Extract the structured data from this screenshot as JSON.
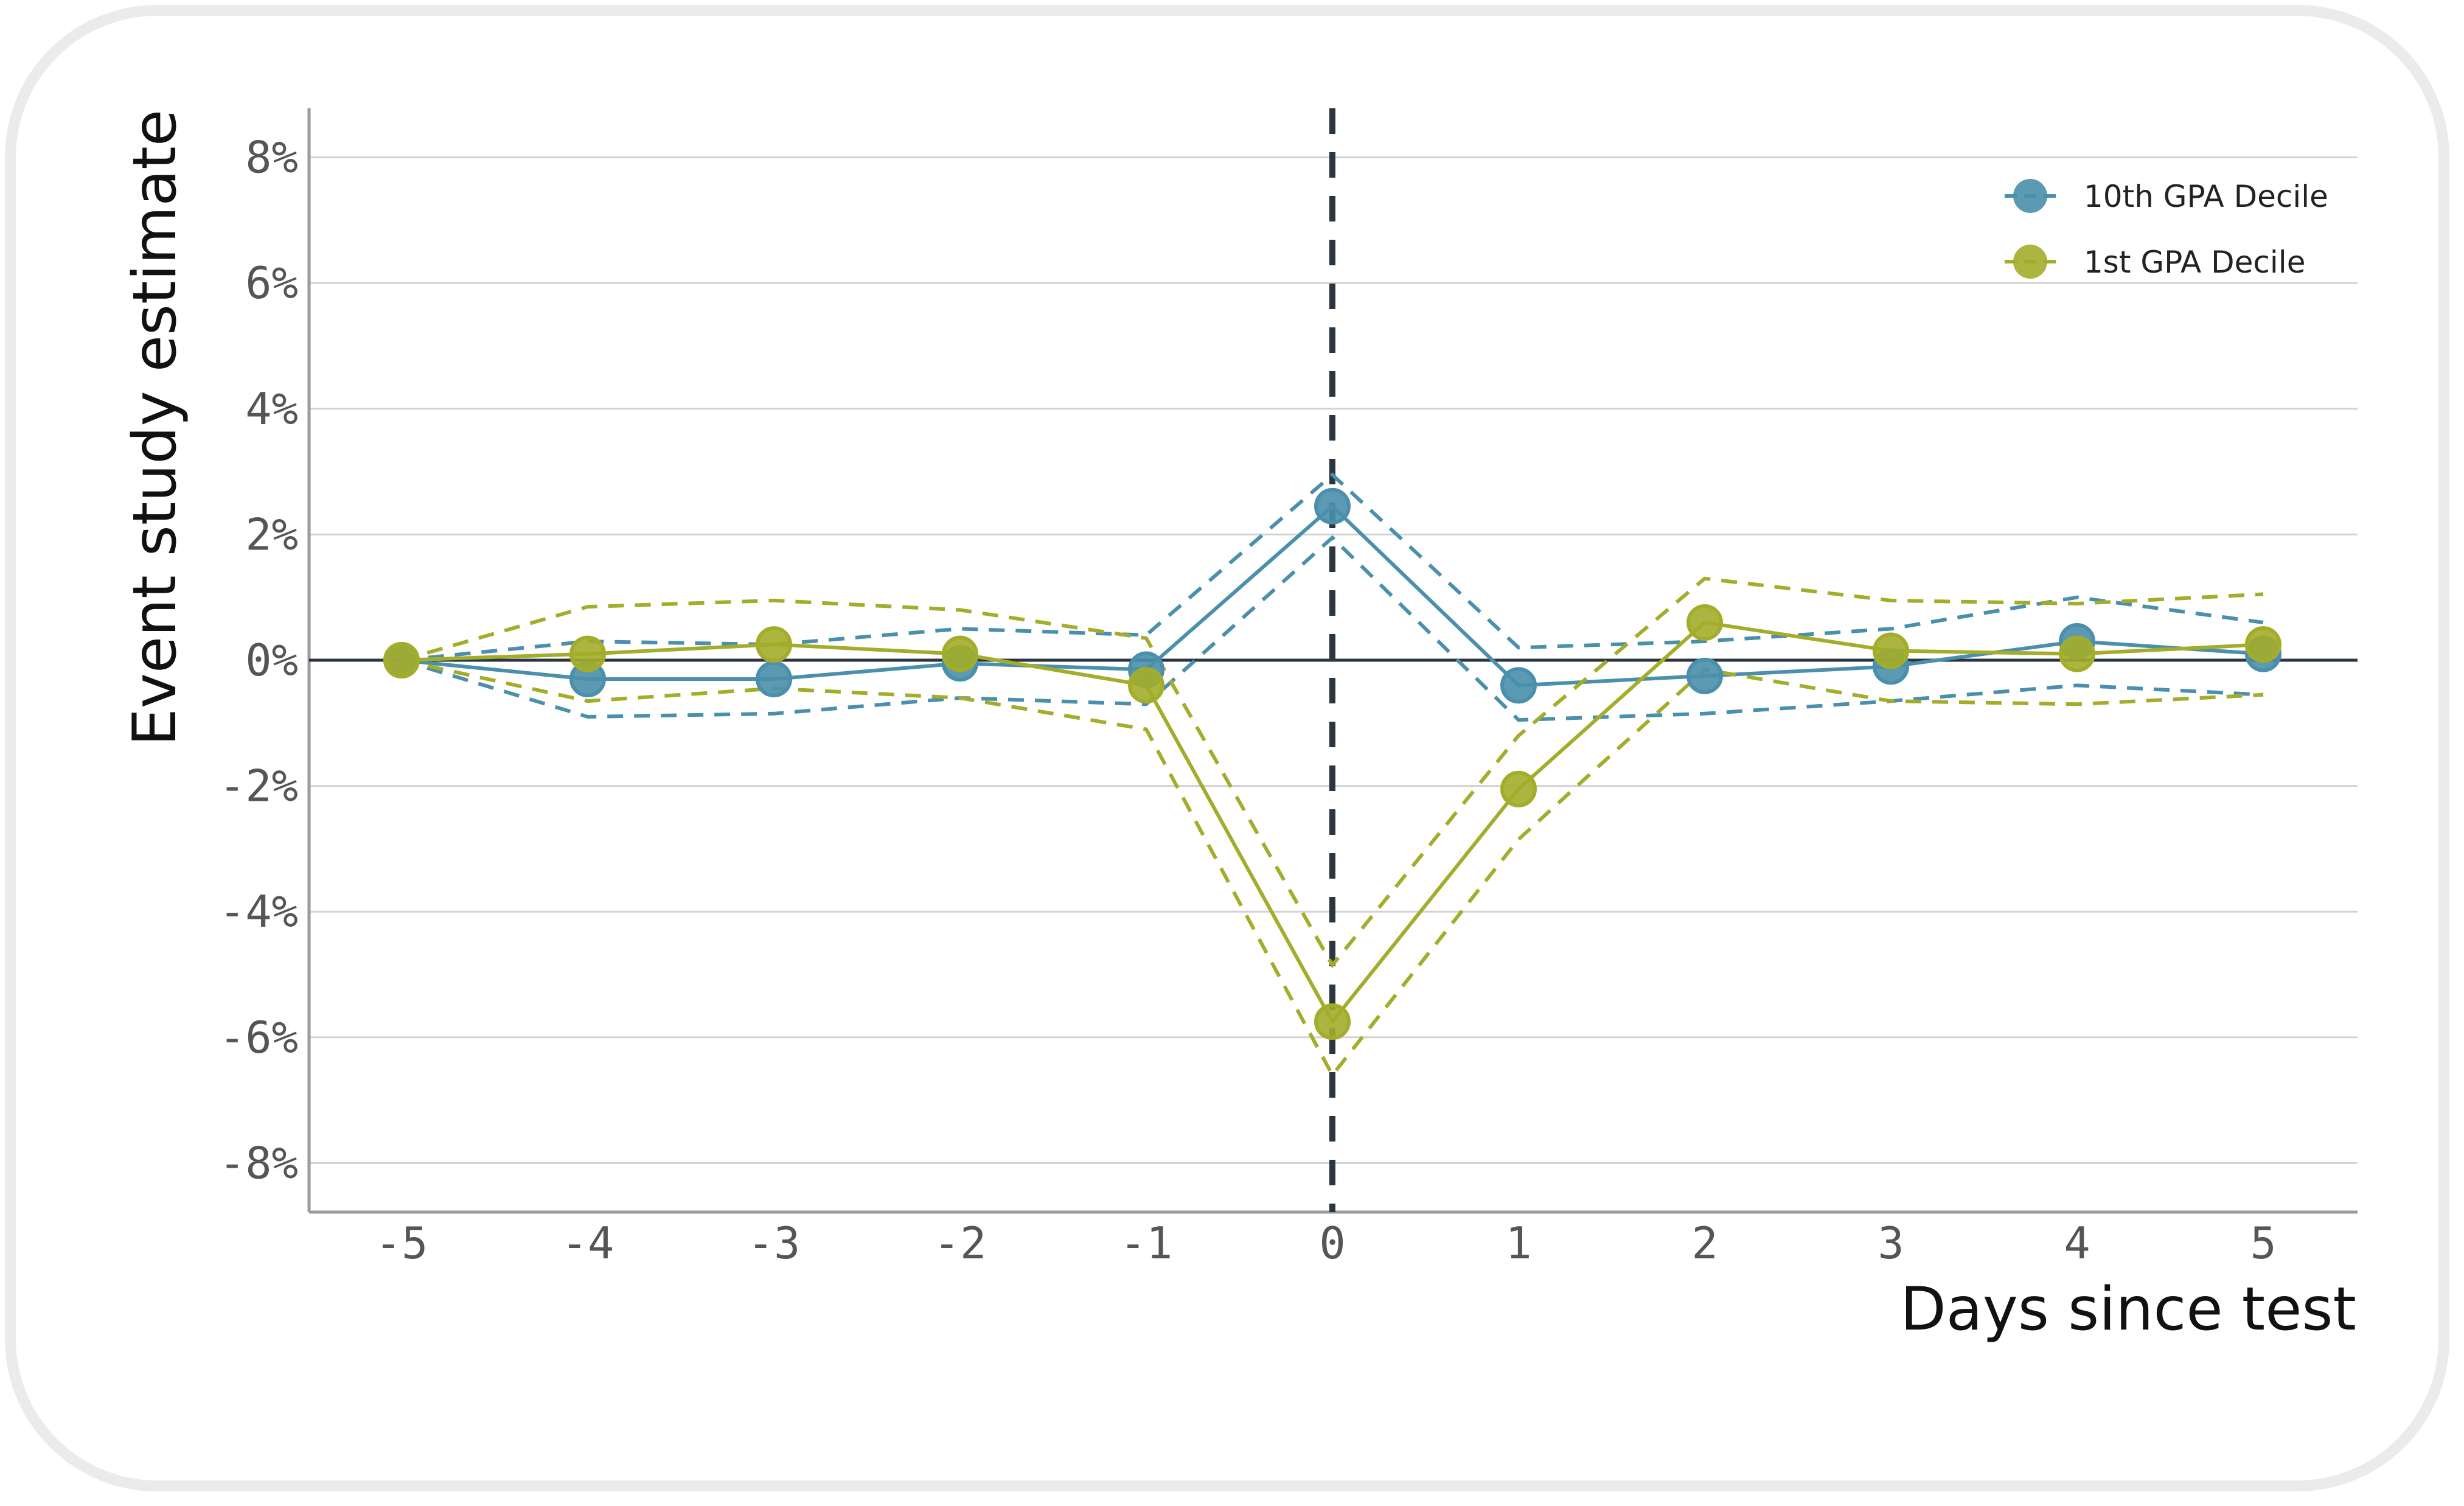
{
  "chart_data": {
    "type": "line",
    "title": "",
    "xlabel": "Days since test",
    "ylabel": "Event study estimate",
    "x": [
      -5,
      -4,
      -3,
      -2,
      -1,
      0,
      1,
      2,
      3,
      4,
      5
    ],
    "x_tick_labels": [
      "-5",
      "-4",
      "-3",
      "-2",
      "-1",
      "0",
      "1",
      "2",
      "3",
      "4",
      "5"
    ],
    "y_ticks": [
      -8,
      -6,
      -4,
      -2,
      0,
      2,
      4,
      6,
      8
    ],
    "y_tick_labels": [
      "-8%",
      "-6%",
      "-4%",
      "-2%",
      "0%",
      "2%",
      "4%",
      "6%",
      "8%"
    ],
    "xlim": [
      -5.5,
      5.5
    ],
    "ylim": [
      -8.8,
      8.8
    ],
    "grid": "horizontal",
    "legend_position": "top-right",
    "vertical_reference_line_x": 0,
    "horizontal_reference_line_y": 0,
    "series": [
      {
        "name": "10th GPA Decile",
        "color": "#4a8fab",
        "values": [
          0,
          -0.3,
          -0.3,
          -0.05,
          -0.15,
          2.45,
          -0.4,
          -0.25,
          -0.1,
          0.3,
          0.1
        ],
        "ci_upper": [
          0,
          0.3,
          0.25,
          0.5,
          0.4,
          2.95,
          0.2,
          0.3,
          0.5,
          1.0,
          0.6
        ],
        "ci_lower": [
          0,
          -0.9,
          -0.85,
          -0.6,
          -0.7,
          1.95,
          -0.95,
          -0.85,
          -0.65,
          -0.4,
          -0.55
        ]
      },
      {
        "name": "1st GPA Decile",
        "color": "#a3ad2a",
        "values": [
          0,
          0.1,
          0.25,
          0.1,
          -0.4,
          -5.75,
          -2.05,
          0.6,
          0.15,
          0.1,
          0.25
        ],
        "ci_upper": [
          0,
          0.85,
          0.95,
          0.8,
          0.35,
          -4.85,
          -1.2,
          1.3,
          0.95,
          0.9,
          1.05
        ],
        "ci_lower": [
          0,
          -0.65,
          -0.45,
          -0.6,
          -1.1,
          -6.6,
          -2.85,
          -0.15,
          -0.65,
          -0.7,
          -0.55
        ]
      }
    ]
  }
}
